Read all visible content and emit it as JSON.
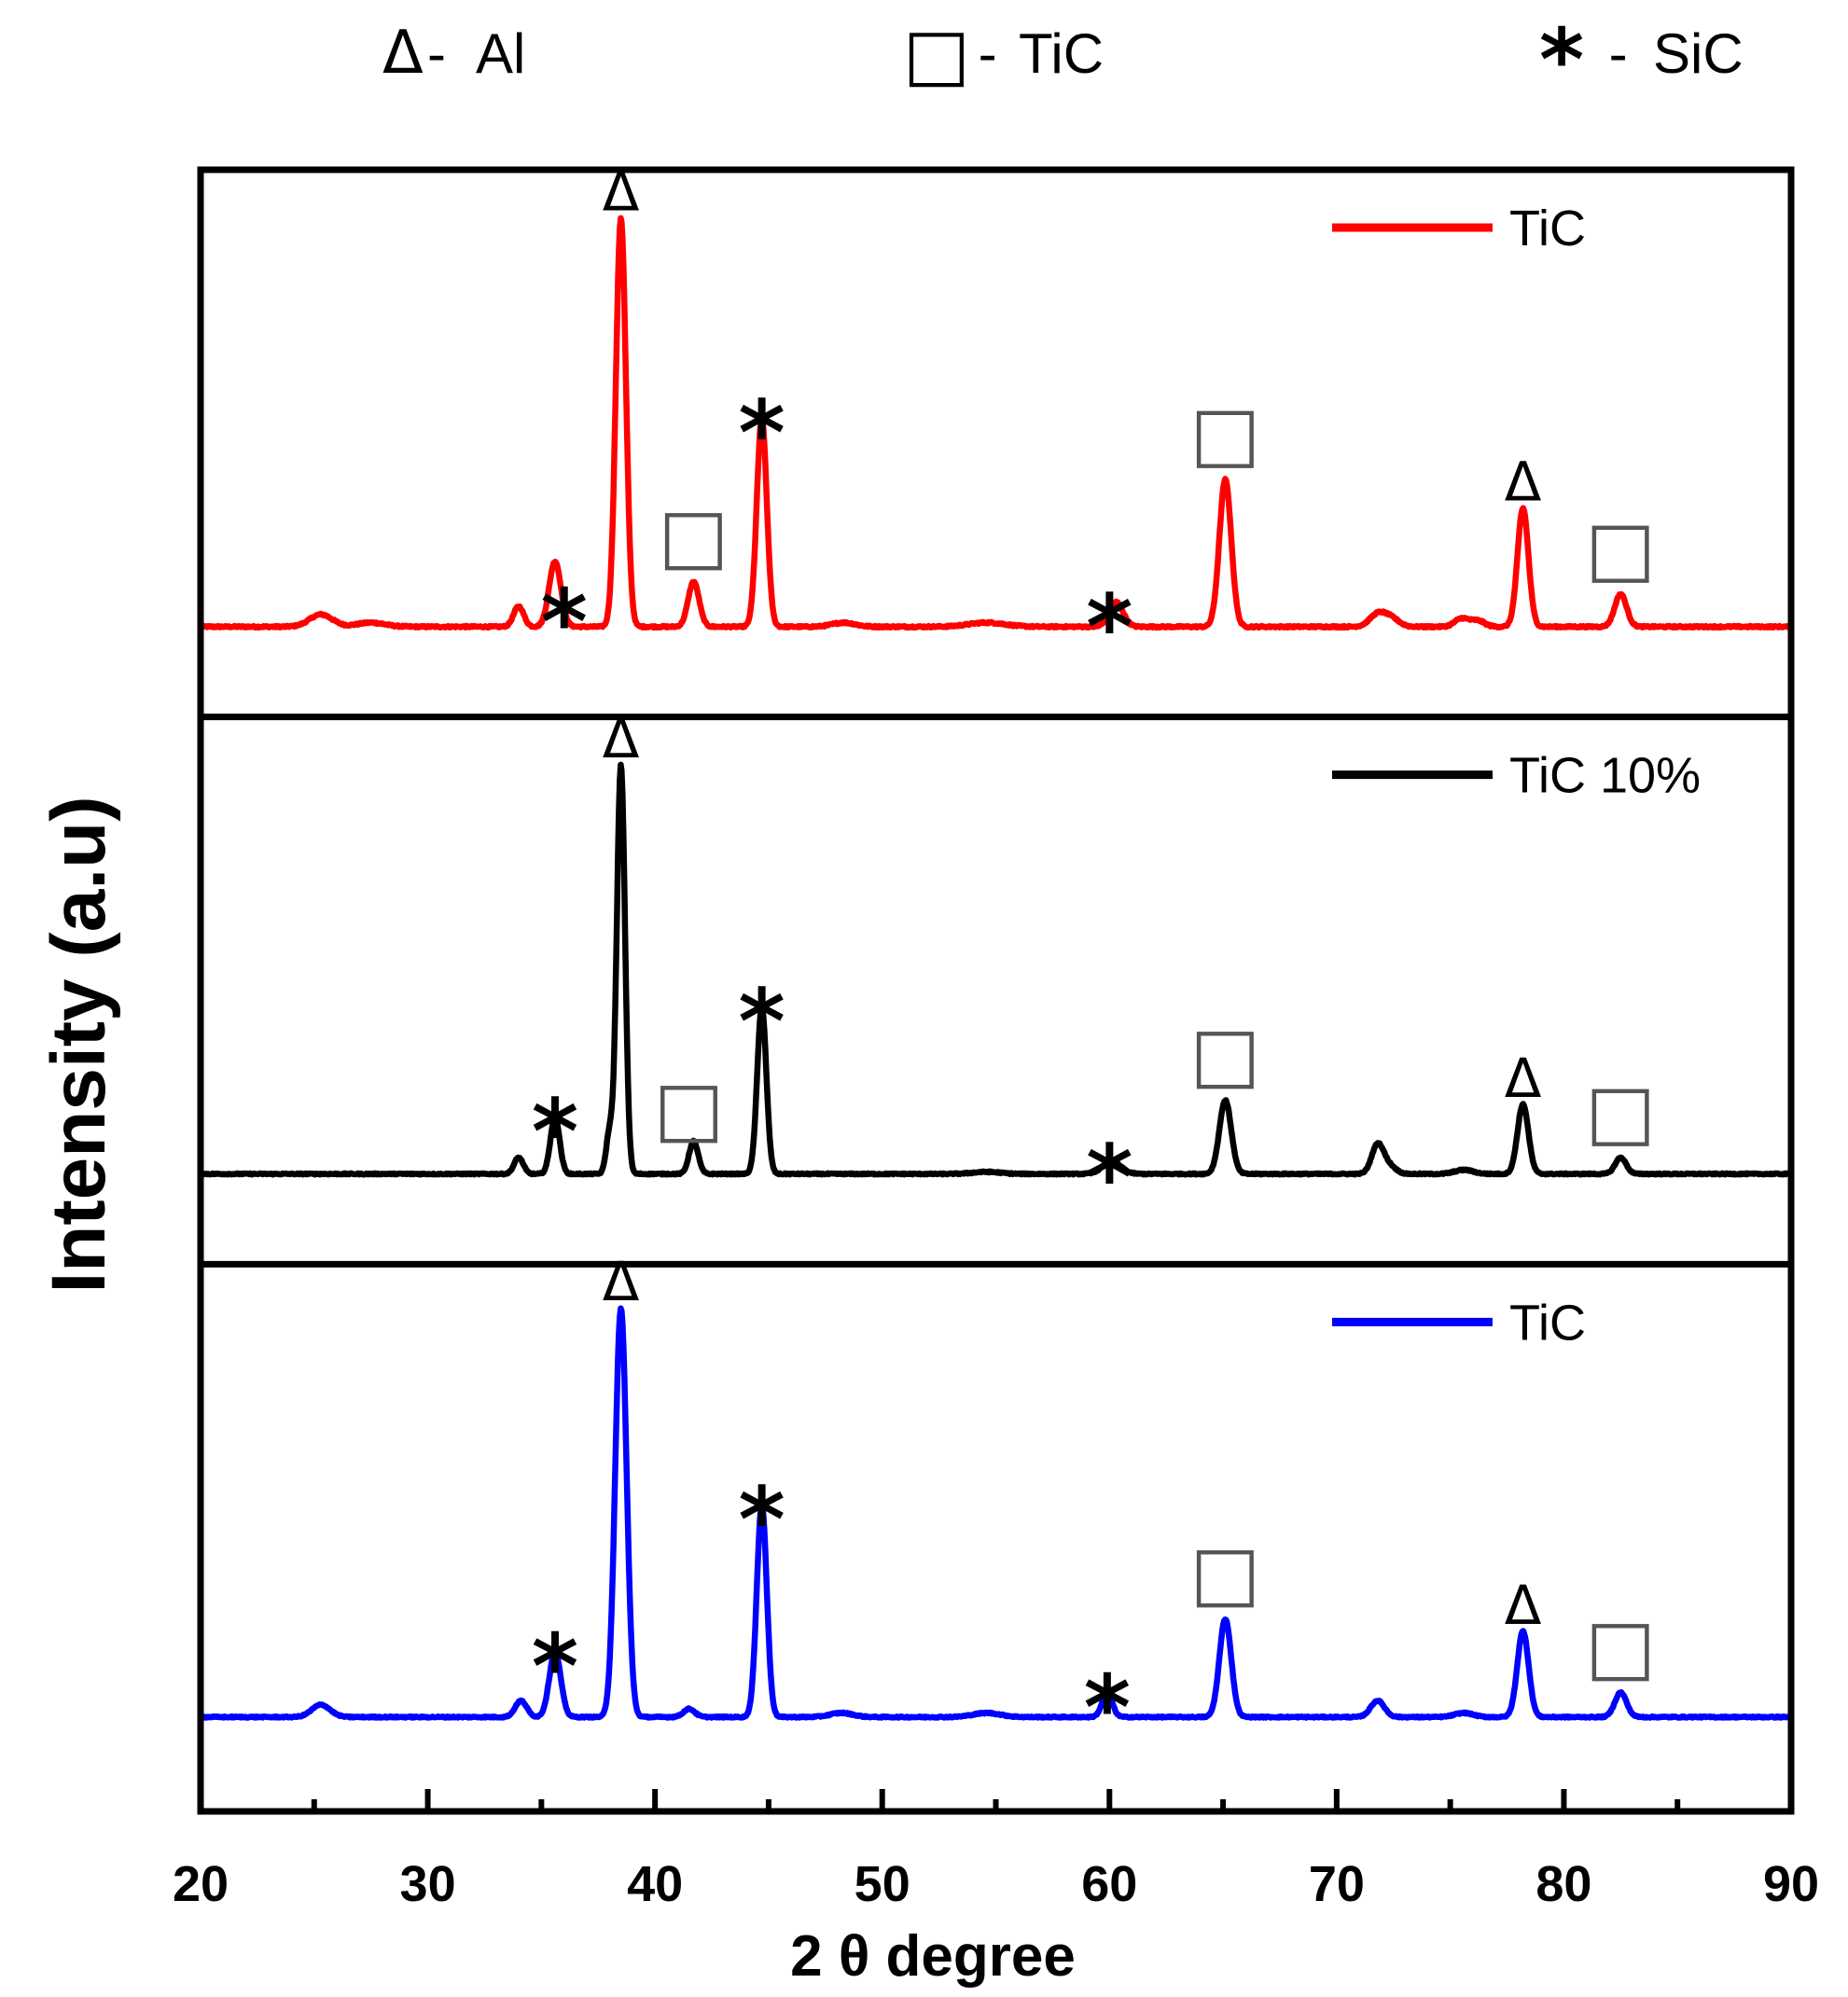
{
  "key_legend": [
    {
      "symbol": "Δ",
      "separator": "- ",
      "label": "Al",
      "phase": "Al"
    },
    {
      "symbol": "□",
      "separator": " - ",
      "label": "TiC",
      "phase": "TiC"
    },
    {
      "symbol": "*",
      "separator": " - ",
      "label": "SiC",
      "phase": "SiC"
    }
  ],
  "chart_data": {
    "type": "line",
    "title": "",
    "xlabel": "2 θ degree",
    "ylabel": "Intensity (a.u)",
    "xlim": [
      20,
      90
    ],
    "xticks": [
      20,
      30,
      40,
      50,
      60,
      70,
      80,
      90
    ],
    "x_minor_step": 5,
    "grid": false,
    "ylim": [
      0,
      1.07
    ],
    "markers": {
      "Al": "Δ",
      "TiC": "□",
      "SiC": "*"
    },
    "series": [
      {
        "name": "TiC",
        "color": "#ff0000",
        "legend_position": "top-right",
        "baseline": 0.04,
        "noise": 0.004,
        "peaks": [
          {
            "x": 25.3,
            "h": 0.03,
            "w": 0.5
          },
          {
            "x": 27.5,
            "h": 0.01,
            "w": 0.6
          },
          {
            "x": 34.0,
            "h": 0.05,
            "w": 0.22
          },
          {
            "x": 35.6,
            "h": 0.16,
            "w": 0.26
          },
          {
            "x": 38.5,
            "h": 1.0,
            "w": 0.22
          },
          {
            "x": 41.7,
            "h": 0.11,
            "w": 0.24
          },
          {
            "x": 44.7,
            "h": 0.51,
            "w": 0.22
          },
          {
            "x": 48.3,
            "h": 0.01,
            "w": 0.5
          },
          {
            "x": 54.6,
            "h": 0.01,
            "w": 0.8
          },
          {
            "x": 60.3,
            "h": 0.06,
            "w": 0.3
          },
          {
            "x": 65.1,
            "h": 0.36,
            "w": 0.26
          },
          {
            "x": 71.8,
            "h": 0.03,
            "w": 0.35
          },
          {
            "x": 72.4,
            "h": 0.02,
            "w": 0.35
          },
          {
            "x": 75.5,
            "h": 0.02,
            "w": 0.3
          },
          {
            "x": 76.2,
            "h": 0.015,
            "w": 0.3
          },
          {
            "x": 78.2,
            "h": 0.29,
            "w": 0.24
          },
          {
            "x": 82.5,
            "h": 0.08,
            "w": 0.26
          }
        ],
        "annotations": [
          {
            "x": 38.5,
            "marker": "Δ"
          },
          {
            "x": 36.0,
            "marker": "*"
          },
          {
            "x": 41.7,
            "marker": "□"
          },
          {
            "x": 44.7,
            "marker": "*"
          },
          {
            "x": 60.0,
            "marker": "*"
          },
          {
            "x": 65.1,
            "marker": "□"
          },
          {
            "x": 78.2,
            "marker": "Δ"
          },
          {
            "x": 82.5,
            "marker": "□"
          }
        ]
      },
      {
        "name": "TiC 10%",
        "color": "#000000",
        "legend_position": "top-right",
        "baseline": 0.04,
        "noise": 0.003,
        "peaks": [
          {
            "x": 34.0,
            "h": 0.04,
            "w": 0.2
          },
          {
            "x": 35.6,
            "h": 0.14,
            "w": 0.2
          },
          {
            "x": 38.0,
            "h": 0.1,
            "w": 0.15
          },
          {
            "x": 38.5,
            "h": 1.0,
            "w": 0.18
          },
          {
            "x": 41.7,
            "h": 0.08,
            "w": 0.2
          },
          {
            "x": 44.7,
            "h": 0.41,
            "w": 0.2
          },
          {
            "x": 54.6,
            "h": 0.005,
            "w": 0.6
          },
          {
            "x": 60.1,
            "h": 0.03,
            "w": 0.4
          },
          {
            "x": 65.1,
            "h": 0.18,
            "w": 0.26
          },
          {
            "x": 71.8,
            "h": 0.07,
            "w": 0.26
          },
          {
            "x": 72.3,
            "h": 0.02,
            "w": 0.3
          },
          {
            "x": 75.6,
            "h": 0.01,
            "w": 0.4
          },
          {
            "x": 78.2,
            "h": 0.17,
            "w": 0.24
          },
          {
            "x": 82.5,
            "h": 0.04,
            "w": 0.24
          }
        ],
        "annotations": [
          {
            "x": 38.5,
            "marker": "Δ"
          },
          {
            "x": 35.6,
            "marker": "*"
          },
          {
            "x": 41.5,
            "marker": "□"
          },
          {
            "x": 44.7,
            "marker": "*"
          },
          {
            "x": 60.0,
            "marker": "*"
          },
          {
            "x": 65.1,
            "marker": "□"
          },
          {
            "x": 78.2,
            "marker": "Δ"
          },
          {
            "x": 82.5,
            "marker": "□"
          }
        ]
      },
      {
        "name": "TiC",
        "color": "#0000ff",
        "legend_position": "top-right",
        "baseline": 0.05,
        "noise": 0.003,
        "peaks": [
          {
            "x": 25.3,
            "h": 0.03,
            "w": 0.4
          },
          {
            "x": 34.1,
            "h": 0.04,
            "w": 0.25
          },
          {
            "x": 35.6,
            "h": 0.16,
            "w": 0.25
          },
          {
            "x": 38.5,
            "h": 1.0,
            "w": 0.25
          },
          {
            "x": 41.5,
            "h": 0.02,
            "w": 0.25
          },
          {
            "x": 44.7,
            "h": 0.52,
            "w": 0.22
          },
          {
            "x": 48.2,
            "h": 0.01,
            "w": 0.5
          },
          {
            "x": 54.6,
            "h": 0.01,
            "w": 0.6
          },
          {
            "x": 59.9,
            "h": 0.06,
            "w": 0.22
          },
          {
            "x": 65.1,
            "h": 0.24,
            "w": 0.26
          },
          {
            "x": 71.8,
            "h": 0.04,
            "w": 0.3
          },
          {
            "x": 75.6,
            "h": 0.01,
            "w": 0.4
          },
          {
            "x": 78.2,
            "h": 0.21,
            "w": 0.25
          },
          {
            "x": 82.5,
            "h": 0.06,
            "w": 0.26
          }
        ],
        "annotations": [
          {
            "x": 38.5,
            "marker": "Δ"
          },
          {
            "x": 35.6,
            "marker": "*"
          },
          {
            "x": 44.7,
            "marker": "*"
          },
          {
            "x": 59.9,
            "marker": "*"
          },
          {
            "x": 65.1,
            "marker": "□"
          },
          {
            "x": 78.2,
            "marker": "Δ"
          },
          {
            "x": 82.5,
            "marker": "□"
          }
        ]
      }
    ]
  }
}
